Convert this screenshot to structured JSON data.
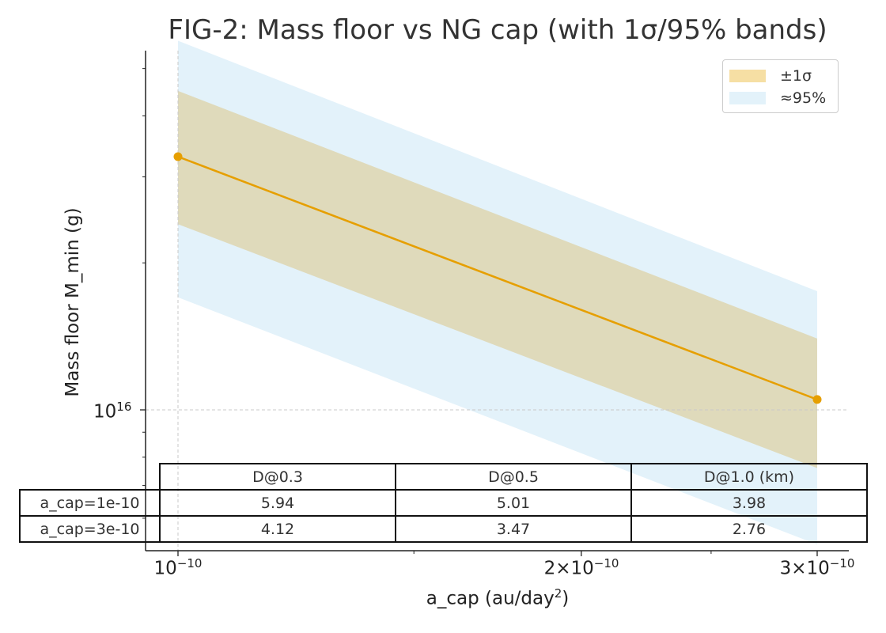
{
  "chart_data": {
    "type": "line",
    "title": "FIG-2: Mass floor vs NG cap (with 1σ/95% bands)",
    "xlabel": "a_cap (au/day",
    "xlabel_sup": "2",
    "xlabel_end": ")",
    "ylabel": "Mass floor M_min (g)",
    "xscale": "log",
    "yscale": "log",
    "x": [
      1e-10,
      3e-10
    ],
    "series": [
      {
        "values": [
          3.3e+16,
          1.05e+16
        ],
        "band_1sigma_low": [
          2.4e+16,
          7600000000000000.0
        ],
        "band_1sigma_high": [
          4.5e+16,
          1.4e+16
        ],
        "band_95_low": [
          1.7e+16,
          5300000000000000.0
        ],
        "band_95_high": [
          5.7e+16,
          1.75e+16
        ]
      }
    ],
    "legend": {
      "placement": "top-right",
      "entries": [
        {
          "label": "±1σ",
          "color": "#f6dfa4"
        },
        {
          "label": "≈95%",
          "color": "#e3f2fa"
        }
      ]
    },
    "xticks": [
      {
        "value": 1e-10,
        "base": "10",
        "exp": "−10"
      },
      {
        "value": 2e-10,
        "base": "2×10",
        "exp": "−10"
      },
      {
        "value": 3e-10,
        "base": "3×10",
        "exp": "−10"
      }
    ],
    "yticks": [
      {
        "value": 1e+16,
        "base": "10",
        "exp": "16"
      }
    ],
    "grid": "major",
    "colors": {
      "line": "#e69f00",
      "sigma_band": "#f6dfa4",
      "ci95_band": "#e3f2fa",
      "overlap": "#dfdabb"
    },
    "table": {
      "columns": [
        "D@0.3",
        "D@0.5",
        "D@1.0 (km)"
      ],
      "rows": [
        {
          "label": "a_cap=1e-10",
          "cells": [
            "5.94",
            "5.01",
            "3.98"
          ]
        },
        {
          "label": "a_cap=3e-10",
          "cells": [
            "4.12",
            "3.47",
            "2.76"
          ]
        }
      ]
    }
  }
}
